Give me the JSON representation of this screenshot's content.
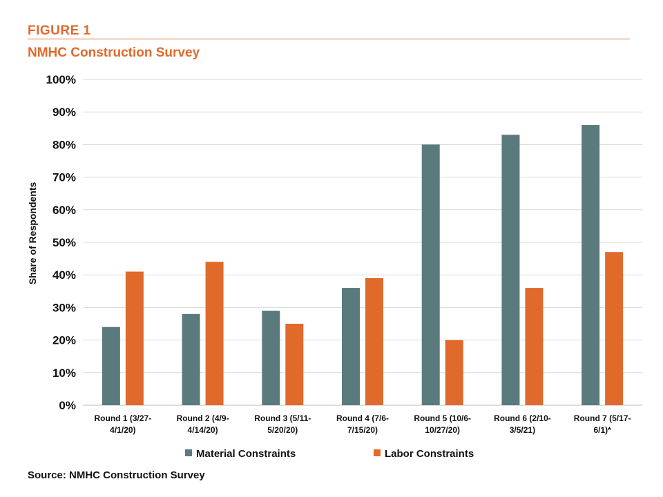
{
  "figure": {
    "label": "FIGURE 1",
    "title": "NMHC Construction Survey",
    "source": "Source: NMHC Construction Survey",
    "accent_color": "#e06a2c"
  },
  "chart_data": {
    "type": "bar",
    "ylabel": "Share of Respondents",
    "xlabel": "",
    "ylim": [
      0,
      100
    ],
    "yticks": [
      "0%",
      "10%",
      "20%",
      "30%",
      "40%",
      "50%",
      "60%",
      "70%",
      "80%",
      "90%",
      "100%"
    ],
    "grid": true,
    "legend_position": "bottom",
    "categories": [
      [
        "Round 1 (3/27-",
        "4/1/20)"
      ],
      [
        "Round 2 (4/9-",
        "4/14/20)"
      ],
      [
        "Round 3 (5/11-",
        "5/20/20)"
      ],
      [
        "Round 4 (7/6-",
        "7/15/20)"
      ],
      [
        "Round 5 (10/6-",
        "10/27/20)"
      ],
      [
        "Round 6 (2/10-",
        "3/5/21)"
      ],
      [
        "Round 7 (5/17-",
        "6/1)*"
      ]
    ],
    "series": [
      {
        "name": "Material Constraints",
        "color": "#5a7a7e",
        "values": [
          24,
          28,
          29,
          36,
          80,
          83,
          86
        ]
      },
      {
        "name": "Labor Constraints",
        "color": "#e06a2c",
        "values": [
          41,
          44,
          25,
          39,
          20,
          36,
          47
        ]
      }
    ]
  }
}
